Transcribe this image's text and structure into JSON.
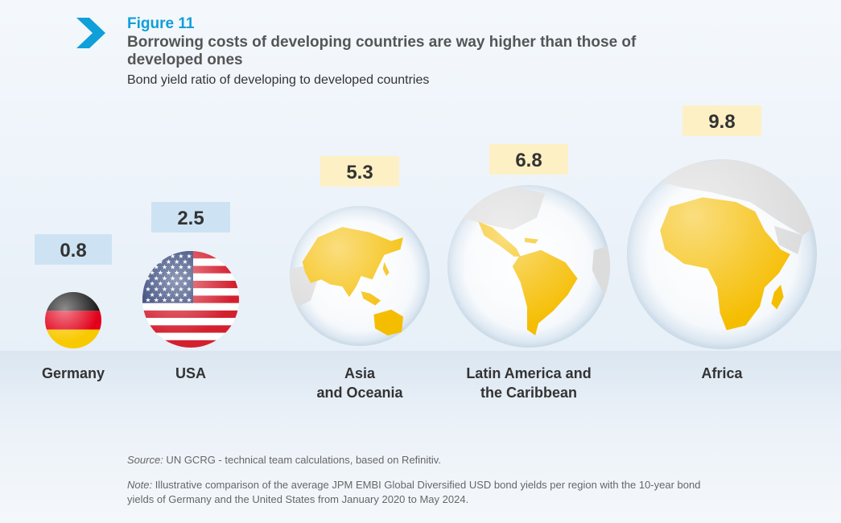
{
  "figure_label": "Figure 11",
  "title": "Borrowing costs of developing countries are way higher than those of developed ones",
  "subtitle": "Bond yield ratio of developing to developed countries",
  "source": {
    "prefix": "Source:",
    "text": " UN GCRG - technical team calculations, based on Refinitiv."
  },
  "note": {
    "prefix": "Note:",
    "text": " Illustrative comparison of the average JPM EMBI Global Diversified USD bond yields per region with the 10-year bond yields of Germany and the United States from January 2020 to May 2024."
  },
  "colors": {
    "accent": "#0f9fd9",
    "label_box_blue": "#cde3f3",
    "label_box_yellow": "#fdf0c4",
    "continent": "#f5bd00",
    "land_other": "#dcdcdc"
  },
  "chart_data": {
    "type": "bubble",
    "categories": [
      "Germany",
      "USA",
      "Asia and Oceania",
      "Latin America and the Caribbean",
      "Africa"
    ],
    "display_labels": [
      [
        "Germany"
      ],
      [
        "USA"
      ],
      [
        "Asia",
        "and Oceania"
      ],
      [
        "Latin America and",
        "the Caribbean"
      ],
      [
        "Africa"
      ]
    ],
    "values": [
      0.8,
      2.5,
      5.3,
      6.8,
      9.8
    ],
    "value_labels": [
      "0.8",
      "2.5",
      "5.3",
      "6.8",
      "9.8"
    ],
    "symbols": [
      "germany-flag",
      "usa-flag",
      "asia-globe",
      "latin-america-globe",
      "africa-globe"
    ],
    "group": [
      "developed",
      "developed",
      "developing",
      "developing",
      "developing"
    ]
  }
}
